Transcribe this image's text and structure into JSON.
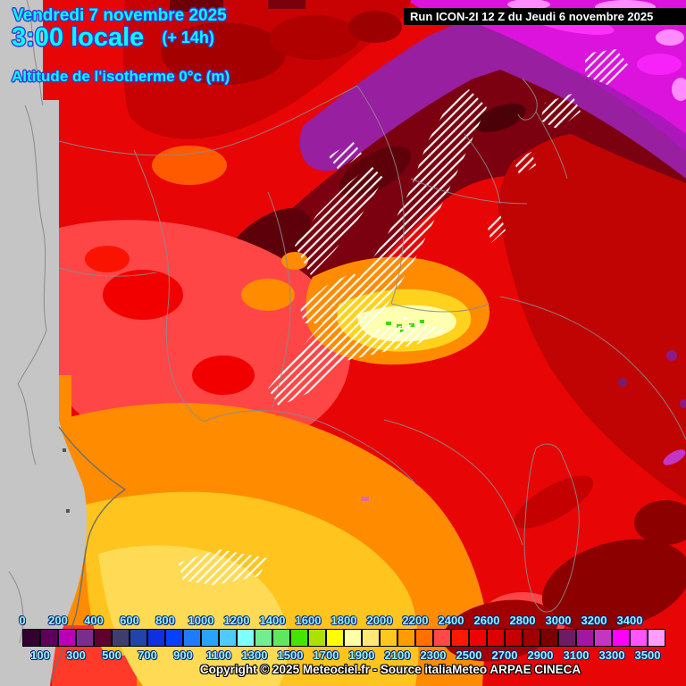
{
  "header": {
    "date_line": "Vendredi 7 novembre 2025",
    "time_line": "3:00 locale",
    "time_offset": "(+ 14h)",
    "variable_label": "Altitude de l'isotherme 0°c (m)",
    "run_info": "Run ICON-2I 12 Z du Jeudi 6 novembre 2025",
    "title_color": "#00FFFF"
  },
  "footer": {
    "copyright": "Copyright © 2025 Meteociel.fr - Source italiaMeteo ARPAE CINECA"
  },
  "legend": {
    "unit": "m",
    "top_labels": [
      "0",
      "200",
      "400",
      "600",
      "800",
      "1000",
      "1200",
      "1400",
      "1600",
      "1800",
      "2000",
      "2200",
      "2400",
      "2600",
      "2800",
      "3000",
      "3200",
      "3400"
    ],
    "bottom_labels": [
      "100",
      "300",
      "500",
      "700",
      "900",
      "1100",
      "1300",
      "1500",
      "1700",
      "1900",
      "2100",
      "2300",
      "2500",
      "2700",
      "2900",
      "3100",
      "3300",
      "3500"
    ],
    "cell_start_values": [
      0,
      100,
      200,
      300,
      400,
      500,
      600,
      700,
      800,
      900,
      1000,
      1100,
      1200,
      1300,
      1400,
      1500,
      1600,
      1700,
      1800,
      1900,
      2000,
      2100,
      2200,
      2300,
      2400,
      2500,
      2600,
      2700,
      2800,
      2900,
      3000,
      3100,
      3200,
      3300,
      3400,
      3500
    ],
    "colors": [
      "#320032",
      "#5C005C",
      "#B800B8",
      "#7B2D8E",
      "#5F0030",
      "#3F3F6E",
      "#2244AA",
      "#1030E0",
      "#0542FF",
      "#1F7BFF",
      "#28A3FF",
      "#4FC9FF",
      "#7FFFFF",
      "#70EE90",
      "#5FE75F",
      "#47E300",
      "#ADE100",
      "#FFFF00",
      "#FFFFA8",
      "#FFE878",
      "#FFC81E",
      "#FF9C00",
      "#FF7000",
      "#FF4848",
      "#FF1800",
      "#F00000",
      "#DC0000",
      "#C40000",
      "#A00000",
      "#7A0000",
      "#6E1A64",
      "#A117A1",
      "#C435C4",
      "#FF00FF",
      "#FF55FF",
      "#FF9EFF"
    ],
    "label_color": "#8FF8FF"
  },
  "map_palette": {
    "out_of_domain_gray": "#C5C5C5",
    "border_line_gray": "#8A8A8A",
    "base_red": "#E80505",
    "salmon_red": "#FF4646",
    "dark_red": "#C40404",
    "maroon_band": "#7B0010",
    "purple_band": "#971FA0",
    "magenta_top": "#DC13DC",
    "pale_pink": "#FF8CFF",
    "orange": "#FF8C00",
    "gold": "#FFC41E",
    "yellow": "#FFDB55",
    "pale_yellow_core": "#FFFFB0",
    "green_specks": "#3FD60A",
    "hatch_white": "#FFFFFF"
  }
}
